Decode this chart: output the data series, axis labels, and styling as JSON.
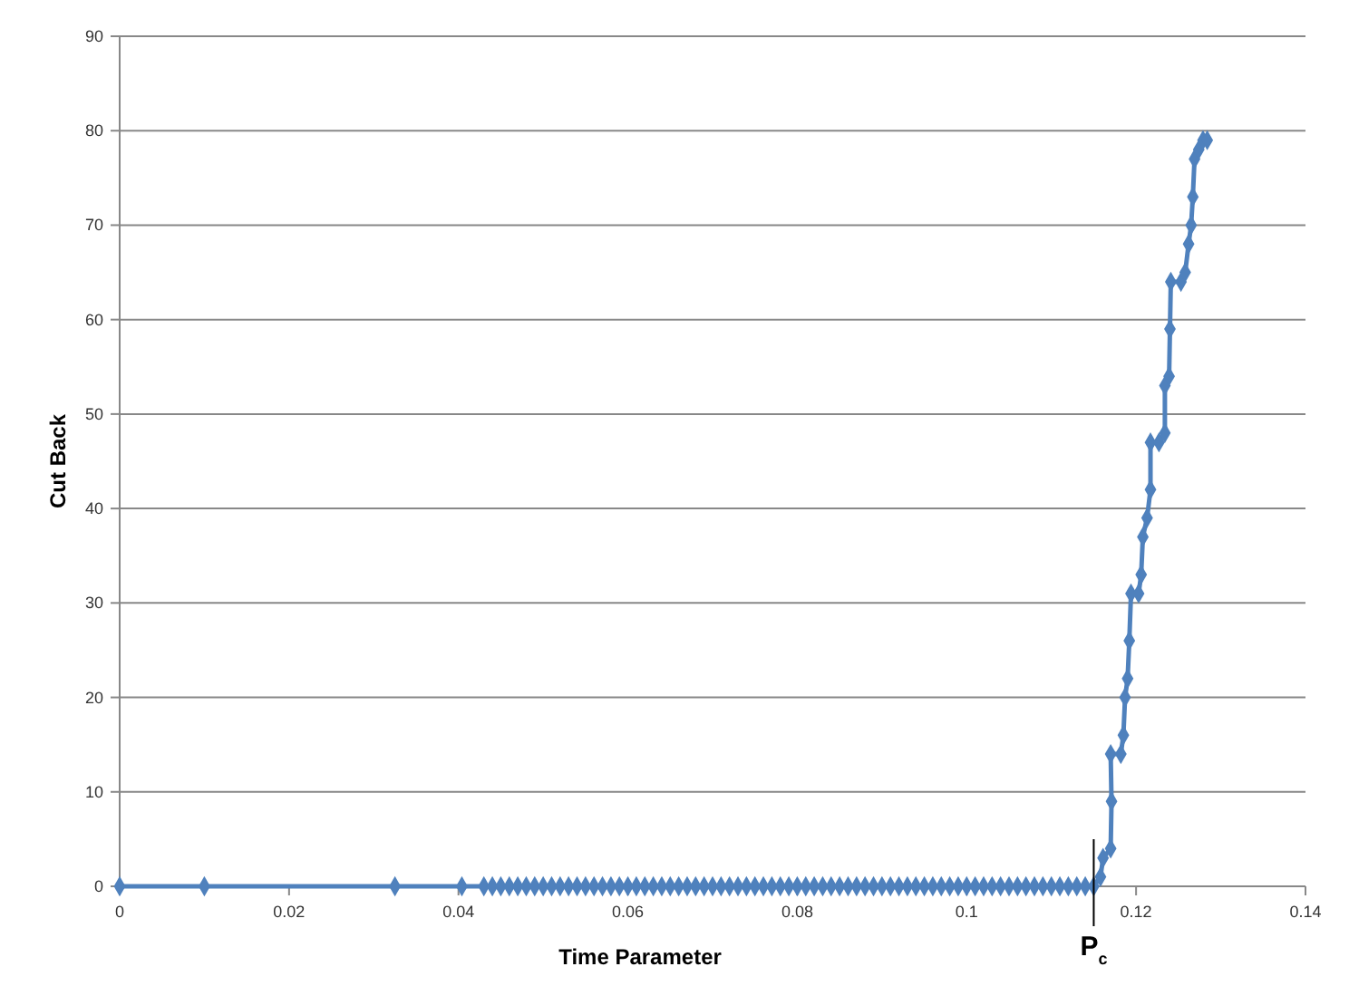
{
  "chart_data": {
    "type": "line",
    "xlabel": "Time Parameter",
    "ylabel": "Cut Back",
    "xlim": [
      0,
      0.14
    ],
    "xticks": [
      0,
      0.02,
      0.04,
      0.06,
      0.08,
      0.1,
      0.12,
      0.14
    ],
    "ylim": [
      0,
      90
    ],
    "yticks": [
      0,
      10,
      20,
      30,
      40,
      50,
      60,
      70,
      80,
      90
    ],
    "grid": "y",
    "marker": "diamond",
    "line_style": "solid",
    "ref_lines": [
      {
        "axis": "x",
        "value": 0.115,
        "label": "P$_{c}$",
        "color": "#000000"
      }
    ],
    "series": [
      {
        "color": "#4f81bd",
        "x": [
          0,
          0.01,
          0.0325,
          0.0404,
          0.043,
          0.044,
          0.045,
          0.046,
          0.047,
          0.048,
          0.049,
          0.05,
          0.051,
          0.052,
          0.053,
          0.054,
          0.055,
          0.056,
          0.057,
          0.058,
          0.059,
          0.06,
          0.061,
          0.062,
          0.063,
          0.064,
          0.065,
          0.066,
          0.067,
          0.068,
          0.069,
          0.07,
          0.071,
          0.072,
          0.073,
          0.074,
          0.075,
          0.076,
          0.077,
          0.078,
          0.079,
          0.08,
          0.081,
          0.082,
          0.083,
          0.084,
          0.085,
          0.086,
          0.087,
          0.088,
          0.089,
          0.09,
          0.091,
          0.092,
          0.093,
          0.094,
          0.095,
          0.096,
          0.097,
          0.098,
          0.099,
          0.1,
          0.101,
          0.102,
          0.103,
          0.104,
          0.105,
          0.106,
          0.107,
          0.108,
          0.109,
          0.11,
          0.111,
          0.112,
          0.113,
          0.114,
          0.115,
          0.1158,
          0.1161,
          0.117,
          0.1171,
          0.117,
          0.1182,
          0.1185,
          0.1187,
          0.119,
          0.1192,
          0.1194,
          0.1203,
          0.1206,
          0.1208,
          0.1213,
          0.1217,
          0.1217,
          0.1227,
          0.1234,
          0.1234,
          0.1239,
          0.124,
          0.1241,
          0.1253,
          0.1258,
          0.1262,
          0.1265,
          0.1267,
          0.1269,
          0.1274,
          0.1279,
          0.1284
        ],
        "values": [
          0,
          0,
          0,
          0,
          0,
          0,
          0,
          0,
          0,
          0,
          0,
          0,
          0,
          0,
          0,
          0,
          0,
          0,
          0,
          0,
          0,
          0,
          0,
          0,
          0,
          0,
          0,
          0,
          0,
          0,
          0,
          0,
          0,
          0,
          0,
          0,
          0,
          0,
          0,
          0,
          0,
          0,
          0,
          0,
          0,
          0,
          0,
          0,
          0,
          0,
          0,
          0,
          0,
          0,
          0,
          0,
          0,
          0,
          0,
          0,
          0,
          0,
          0,
          0,
          0,
          0,
          0,
          0,
          0,
          0,
          0,
          0,
          0,
          0,
          0,
          0,
          0,
          1,
          3,
          4,
          9,
          14,
          14,
          16,
          20,
          22,
          26,
          31,
          31,
          33,
          37,
          39,
          42,
          47,
          47,
          48,
          53,
          54,
          59,
          64,
          64,
          65,
          68,
          70,
          73,
          77,
          78,
          79,
          79
        ]
      }
    ]
  }
}
